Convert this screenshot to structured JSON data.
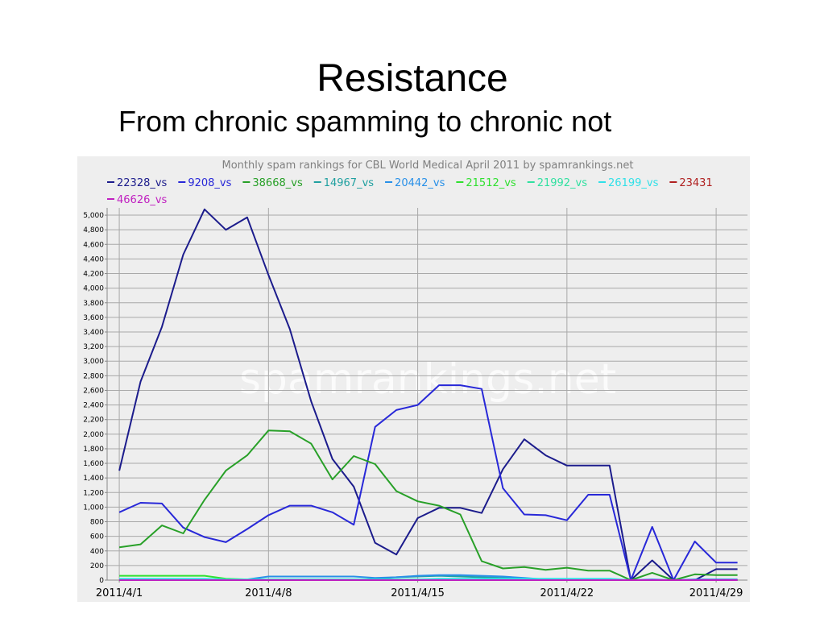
{
  "slide": {
    "title": "Resistance",
    "subtitle": "From chronic spamming to chronic not"
  },
  "chart_data": {
    "type": "line",
    "title": "Monthly spam rankings for CBL World Medical April 2011 by spamrankings.net",
    "watermark": "spamrankings.net",
    "x": [
      1,
      2,
      3,
      4,
      5,
      6,
      7,
      8,
      9,
      10,
      11,
      12,
      13,
      14,
      15,
      16,
      17,
      18,
      19,
      20,
      21,
      22,
      23,
      24,
      25,
      26,
      27,
      28,
      29,
      30
    ],
    "xlim": [
      0.43,
      30.47
    ],
    "xticks": [
      {
        "value": 1,
        "label": "2011/4/1"
      },
      {
        "value": 8,
        "label": "2011/4/8"
      },
      {
        "value": 15,
        "label": "2011/4/15"
      },
      {
        "value": 22,
        "label": "2011/4/22"
      },
      {
        "value": 29,
        "label": "2011/4/29"
      }
    ],
    "ylim": [
      0,
      5100
    ],
    "yticks": [
      0,
      200,
      400,
      600,
      800,
      {
        "value": 1000,
        "label": "1,000"
      },
      {
        "value": 1200,
        "label": "1,200"
      },
      {
        "value": 1400,
        "label": "1,400"
      },
      {
        "value": 1600,
        "label": "1,600"
      },
      {
        "value": 1800,
        "label": "1,800"
      },
      {
        "value": 2000,
        "label": "2,000"
      },
      {
        "value": 2200,
        "label": "2,200"
      },
      {
        "value": 2400,
        "label": "2,400"
      },
      {
        "value": 2600,
        "label": "2,600"
      },
      {
        "value": 2800,
        "label": "2,800"
      },
      {
        "value": 3000,
        "label": "3,000"
      },
      {
        "value": 3200,
        "label": "3,200"
      },
      {
        "value": 3400,
        "label": "3,400"
      },
      {
        "value": 3600,
        "label": "3,600"
      },
      {
        "value": 3800,
        "label": "3,800"
      },
      {
        "value": 4000,
        "label": "4,000"
      },
      {
        "value": 4200,
        "label": "4,200"
      },
      {
        "value": 4400,
        "label": "4,400"
      },
      {
        "value": 4600,
        "label": "4,600"
      },
      {
        "value": 4800,
        "label": "4,800"
      },
      {
        "value": 5000,
        "label": "5,000"
      }
    ],
    "grid": true,
    "legend": "top",
    "series": [
      {
        "name": "22328_vs",
        "color": "#1c1c8c",
        "values": [
          1500,
          2720,
          3470,
          4460,
          5080,
          4800,
          4970,
          4180,
          3440,
          2450,
          1660,
          1280,
          510,
          350,
          850,
          990,
          990,
          920,
          1520,
          1930,
          1710,
          1570,
          1570,
          1570,
          0,
          270,
          0,
          0,
          150,
          150
        ]
      },
      {
        "name": "9208_vs",
        "color": "#2828d8",
        "values": [
          930,
          1060,
          1050,
          720,
          590,
          520,
          700,
          890,
          1020,
          1020,
          930,
          760,
          2100,
          2330,
          2400,
          2670,
          2670,
          2620,
          1260,
          900,
          890,
          820,
          1170,
          1170,
          0,
          730,
          0,
          530,
          240,
          240
        ]
      },
      {
        "name": "38668_vs",
        "color": "#28a028",
        "values": [
          450,
          490,
          750,
          640,
          1100,
          1500,
          1710,
          2050,
          2040,
          1870,
          1380,
          1700,
          1590,
          1220,
          1080,
          1020,
          900,
          260,
          160,
          180,
          140,
          170,
          130,
          130,
          0,
          100,
          0,
          80,
          70,
          70
        ]
      },
      {
        "name": "14967_vs",
        "color": "#20a0a0",
        "values": [
          0,
          0,
          0,
          0,
          0,
          0,
          0,
          0,
          0,
          0,
          0,
          0,
          20,
          40,
          50,
          60,
          50,
          40,
          30,
          20,
          10,
          0,
          0,
          0,
          0,
          0,
          0,
          0,
          0,
          0
        ]
      },
      {
        "name": "20442_vs",
        "color": "#2890e8",
        "values": [
          10,
          10,
          10,
          10,
          10,
          10,
          10,
          50,
          50,
          50,
          50,
          50,
          30,
          40,
          60,
          70,
          70,
          60,
          50,
          30,
          10,
          10,
          10,
          10,
          0,
          10,
          0,
          10,
          10,
          10
        ]
      },
      {
        "name": "21512_vs",
        "color": "#30e030",
        "values": [
          60,
          60,
          60,
          60,
          60,
          20,
          10,
          10,
          10,
          10,
          10,
          10,
          10,
          10,
          10,
          10,
          10,
          10,
          10,
          10,
          10,
          10,
          10,
          10,
          0,
          0,
          0,
          0,
          0,
          0
        ]
      },
      {
        "name": "21992_vs",
        "color": "#30e0a0",
        "values": [
          0,
          0,
          0,
          0,
          0,
          0,
          0,
          0,
          0,
          0,
          0,
          0,
          0,
          0,
          0,
          0,
          0,
          0,
          0,
          0,
          0,
          0,
          0,
          0,
          0,
          0,
          0,
          0,
          0,
          0
        ]
      },
      {
        "name": "26199_vs",
        "color": "#30e0e8",
        "values": [
          20,
          20,
          20,
          20,
          20,
          10,
          10,
          10,
          10,
          10,
          10,
          10,
          10,
          10,
          10,
          20,
          20,
          20,
          20,
          20,
          20,
          20,
          20,
          20,
          0,
          0,
          0,
          0,
          0,
          0
        ]
      },
      {
        "name": "23431",
        "color": "#b02020",
        "values": [
          0,
          0,
          0,
          0,
          0,
          0,
          0,
          0,
          0,
          0,
          0,
          0,
          0,
          0,
          0,
          0,
          0,
          0,
          0,
          0,
          0,
          0,
          0,
          0,
          0,
          0,
          0,
          0,
          0,
          0
        ]
      },
      {
        "name": "46626_vs",
        "color": "#c020c0",
        "values": [
          0,
          0,
          0,
          0,
          0,
          0,
          0,
          0,
          0,
          0,
          0,
          0,
          0,
          0,
          0,
          0,
          0,
          0,
          0,
          0,
          0,
          0,
          0,
          0,
          0,
          0,
          0,
          0,
          0,
          0
        ]
      }
    ]
  }
}
